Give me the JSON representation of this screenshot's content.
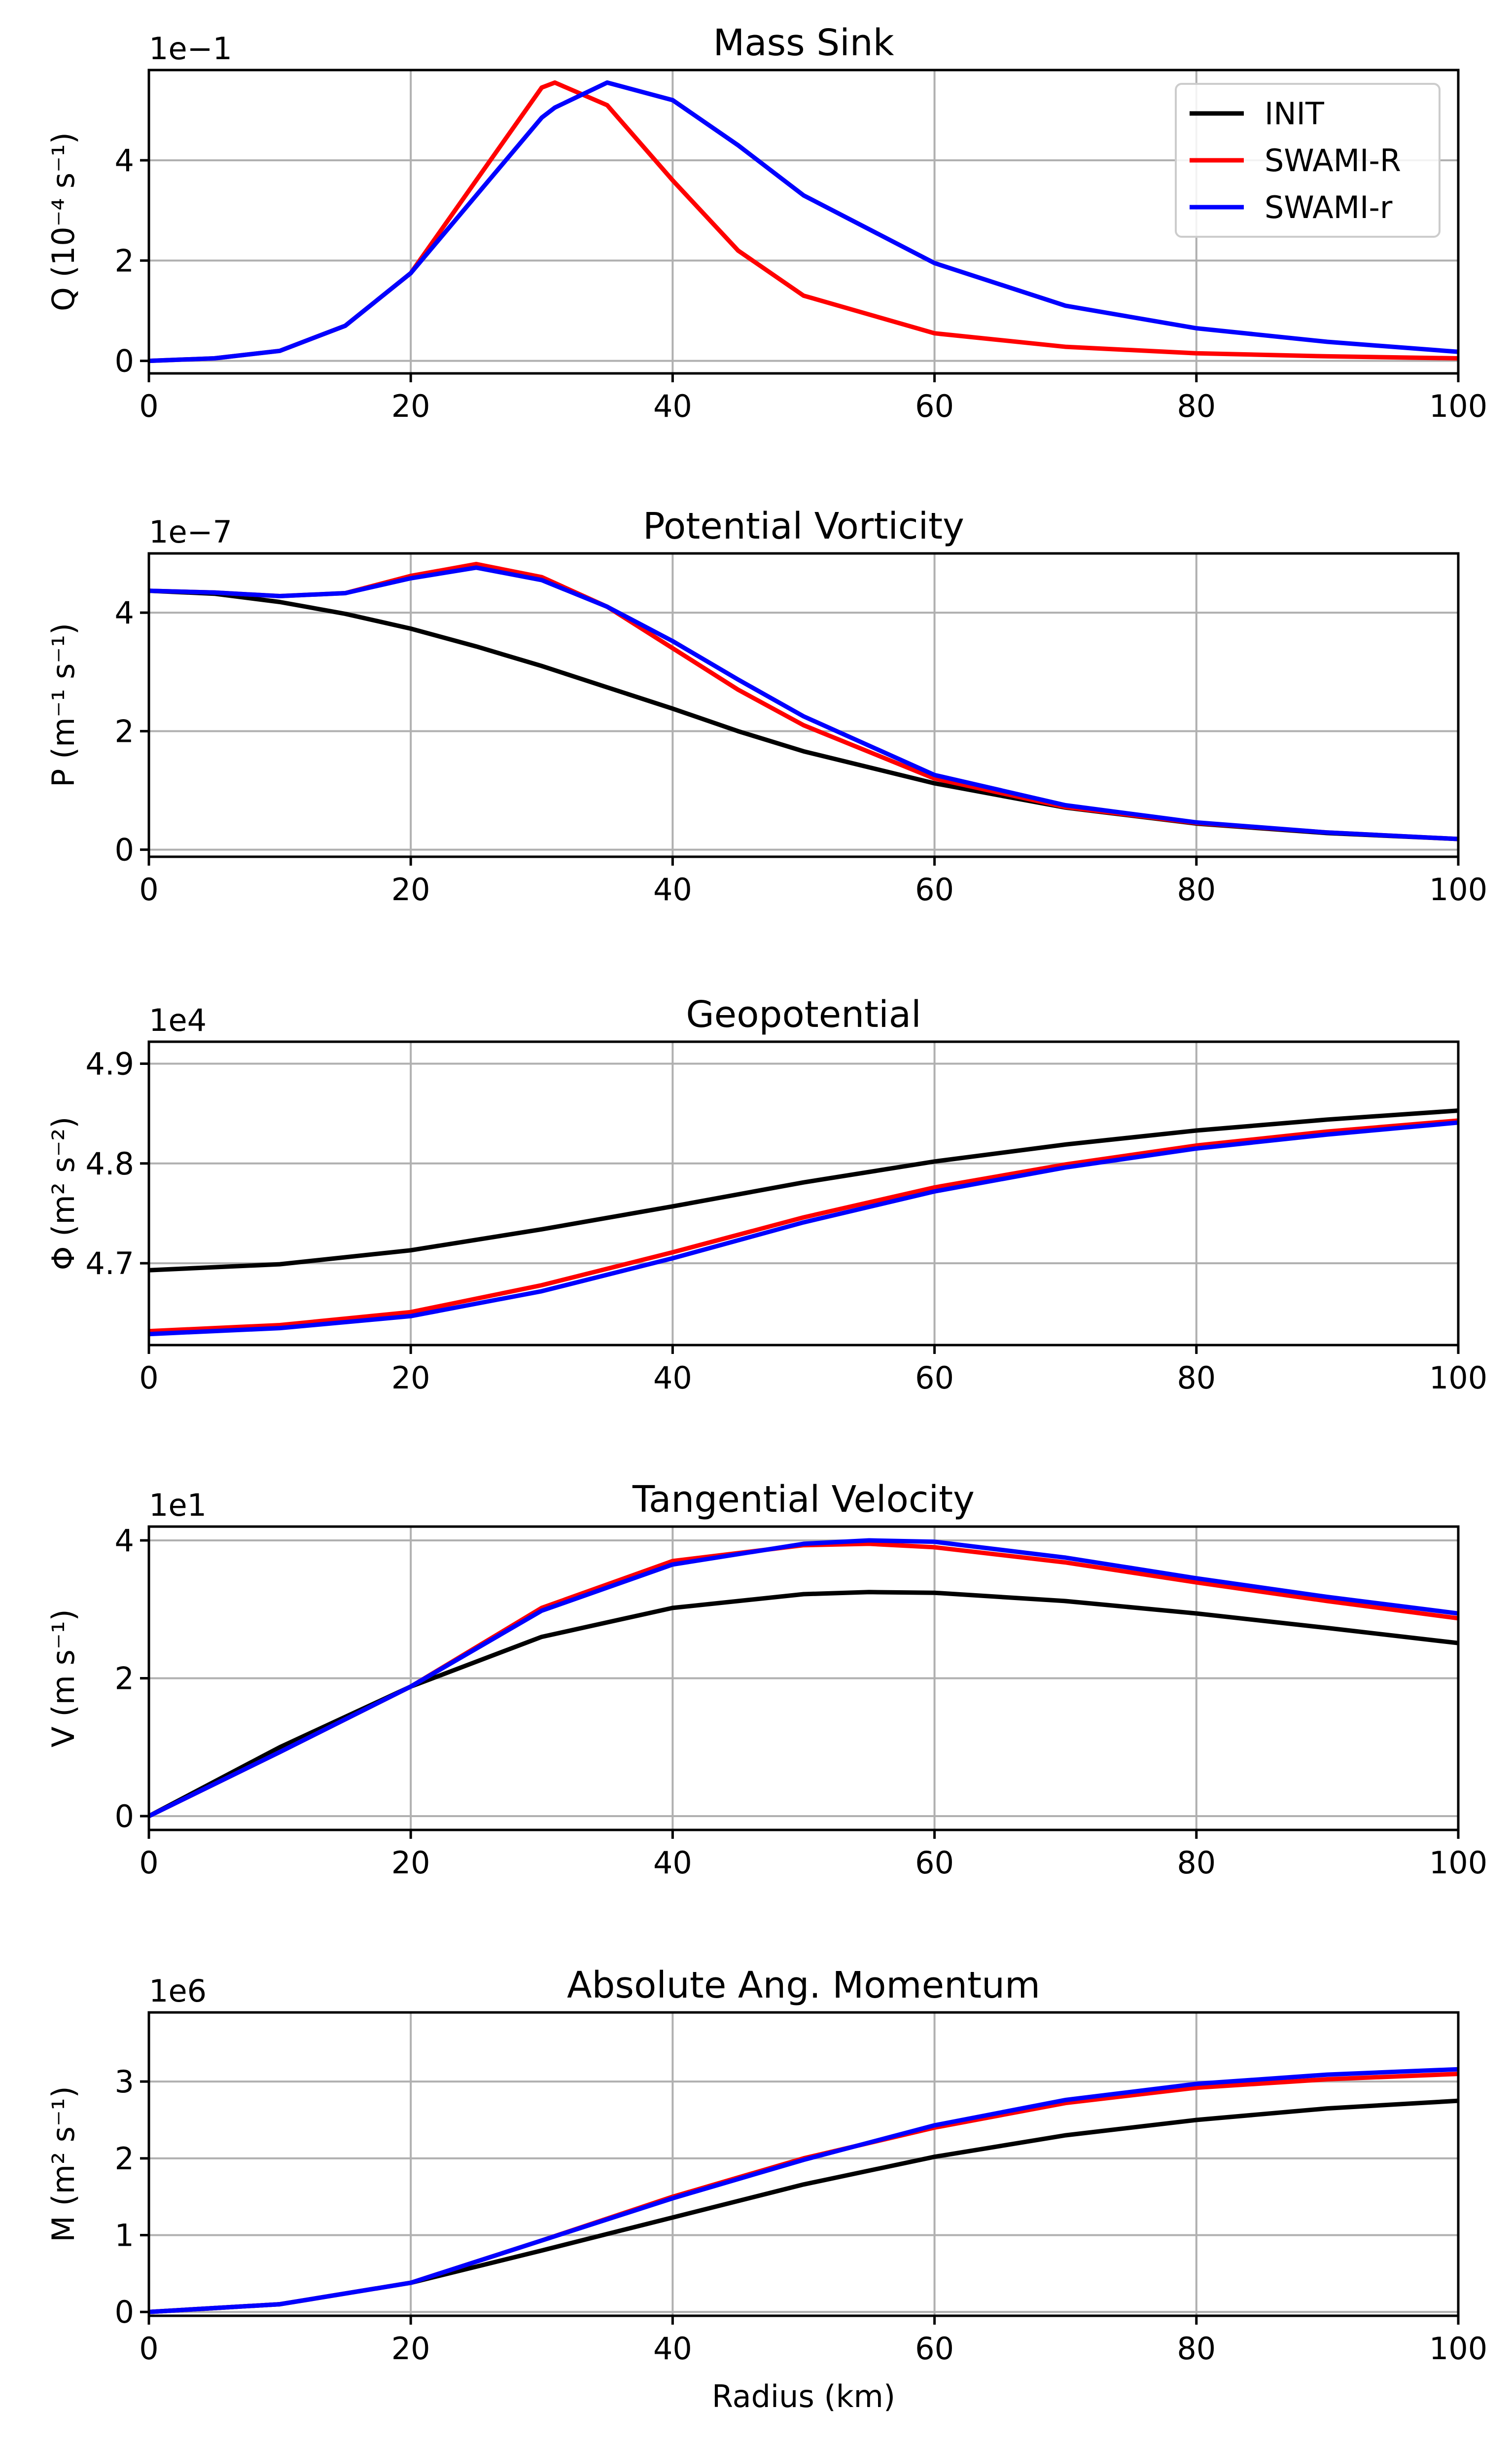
{
  "figure": {
    "legend": [
      {
        "label": "INIT",
        "color": "#000000"
      },
      {
        "label": "SWAMI-R",
        "color": "#ff0000"
      },
      {
        "label": "SWAMI-r",
        "color": "#0000ff"
      }
    ]
  },
  "chart_data": [
    {
      "type": "line",
      "title": "Mass Sink",
      "ylabel": "Q (10⁻⁴ s⁻¹)",
      "xlabel": "",
      "offset_label": "1e−1",
      "xlim": [
        0,
        100
      ],
      "ylim": [
        -0.25,
        5.8
      ],
      "xticks": [
        0,
        20,
        40,
        60,
        80,
        100
      ],
      "xtick_labels": [
        "0",
        "20",
        "40",
        "60",
        "80",
        "100"
      ],
      "yticks": [
        0,
        2,
        4
      ],
      "ytick_labels": [
        "0",
        "2",
        "4"
      ],
      "grid": true,
      "legend_position": "top-right",
      "x": [
        0,
        5,
        10,
        15,
        20,
        25,
        30,
        31,
        35,
        40,
        45,
        50,
        60,
        70,
        80,
        90,
        100
      ],
      "series": [
        {
          "name": "SWAMI-R",
          "color": "#ff0000",
          "values": [
            0.0,
            0.05,
            0.2,
            0.7,
            1.75,
            3.6,
            5.45,
            5.55,
            5.1,
            3.6,
            2.2,
            1.3,
            0.55,
            0.28,
            0.15,
            0.09,
            0.05
          ]
        },
        {
          "name": "SWAMI-r",
          "color": "#0000ff",
          "values": [
            0.0,
            0.05,
            0.2,
            0.7,
            1.75,
            3.3,
            4.85,
            5.05,
            5.55,
            5.2,
            4.3,
            3.3,
            1.95,
            1.1,
            0.65,
            0.38,
            0.18
          ]
        }
      ]
    },
    {
      "type": "line",
      "title": "Potential Vorticity",
      "ylabel": "P (m⁻¹ s⁻¹)",
      "xlabel": "",
      "offset_label": "1e−7",
      "xlim": [
        0,
        100
      ],
      "ylim": [
        -0.12,
        5.0
      ],
      "xticks": [
        0,
        20,
        40,
        60,
        80,
        100
      ],
      "xtick_labels": [
        "0",
        "20",
        "40",
        "60",
        "80",
        "100"
      ],
      "yticks": [
        0,
        2,
        4
      ],
      "ytick_labels": [
        "0",
        "2",
        "4"
      ],
      "grid": true,
      "x": [
        0,
        5,
        10,
        15,
        20,
        25,
        30,
        35,
        40,
        45,
        50,
        60,
        70,
        80,
        90,
        100
      ],
      "series": [
        {
          "name": "INIT",
          "color": "#000000",
          "values": [
            4.37,
            4.32,
            4.18,
            3.98,
            3.73,
            3.43,
            3.1,
            2.74,
            2.38,
            2.0,
            1.66,
            1.12,
            0.71,
            0.44,
            0.28,
            0.18
          ]
        },
        {
          "name": "SWAMI-R",
          "color": "#ff0000",
          "values": [
            4.37,
            4.34,
            4.28,
            4.33,
            4.62,
            4.82,
            4.6,
            4.1,
            3.4,
            2.7,
            2.1,
            1.2,
            0.72,
            0.45,
            0.29,
            0.18
          ]
        },
        {
          "name": "SWAMI-r",
          "color": "#0000ff",
          "values": [
            4.37,
            4.34,
            4.28,
            4.33,
            4.58,
            4.76,
            4.55,
            4.1,
            3.52,
            2.87,
            2.25,
            1.26,
            0.75,
            0.46,
            0.29,
            0.18
          ]
        }
      ]
    },
    {
      "type": "line",
      "title": "Geopotential",
      "ylabel": "Φ (m² s⁻²)",
      "xlabel": "",
      "offset_label": "1e4",
      "xlim": [
        0,
        100
      ],
      "ylim": [
        4.618,
        4.922
      ],
      "xticks": [
        0,
        20,
        40,
        60,
        80,
        100
      ],
      "xtick_labels": [
        "0",
        "20",
        "40",
        "60",
        "80",
        "100"
      ],
      "yticks": [
        4.7,
        4.8,
        4.9
      ],
      "ytick_labels": [
        "4.7",
        "4.8",
        "4.9"
      ],
      "grid": true,
      "x": [
        0,
        10,
        20,
        30,
        40,
        50,
        60,
        70,
        80,
        90,
        100
      ],
      "series": [
        {
          "name": "INIT",
          "color": "#000000",
          "values": [
            4.693,
            4.699,
            4.713,
            4.734,
            4.757,
            4.781,
            4.802,
            4.819,
            4.833,
            4.844,
            4.853
          ]
        },
        {
          "name": "SWAMI-R",
          "color": "#ff0000",
          "values": [
            4.632,
            4.638,
            4.651,
            4.678,
            4.711,
            4.746,
            4.776,
            4.799,
            4.818,
            4.832,
            4.843
          ]
        },
        {
          "name": "SWAMI-r",
          "color": "#0000ff",
          "values": [
            4.629,
            4.635,
            4.647,
            4.672,
            4.705,
            4.741,
            4.772,
            4.796,
            4.815,
            4.829,
            4.841
          ]
        }
      ]
    },
    {
      "type": "line",
      "title": "Tangential Velocity",
      "ylabel": "V (m s⁻¹)",
      "xlabel": "",
      "offset_label": "1e1",
      "xlim": [
        0,
        100
      ],
      "ylim": [
        -0.2,
        4.2
      ],
      "xticks": [
        0,
        20,
        40,
        60,
        80,
        100
      ],
      "xtick_labels": [
        "0",
        "20",
        "40",
        "60",
        "80",
        "100"
      ],
      "yticks": [
        0,
        2,
        4
      ],
      "ytick_labels": [
        "0",
        "2",
        "4"
      ],
      "grid": true,
      "x": [
        0,
        10,
        20,
        30,
        40,
        50,
        55,
        60,
        70,
        80,
        90,
        100
      ],
      "series": [
        {
          "name": "INIT",
          "color": "#000000",
          "values": [
            0.0,
            1.0,
            1.88,
            2.6,
            3.02,
            3.22,
            3.25,
            3.24,
            3.12,
            2.94,
            2.73,
            2.51
          ]
        },
        {
          "name": "SWAMI-R",
          "color": "#ff0000",
          "values": [
            0.0,
            0.93,
            1.88,
            3.02,
            3.7,
            3.93,
            3.95,
            3.9,
            3.68,
            3.39,
            3.12,
            2.87
          ]
        },
        {
          "name": "SWAMI-r",
          "color": "#0000ff",
          "values": [
            0.0,
            0.93,
            1.88,
            2.98,
            3.65,
            3.95,
            4.0,
            3.98,
            3.75,
            3.45,
            3.18,
            2.94
          ]
        }
      ]
    },
    {
      "type": "line",
      "title": "Absolute Ang. Momentum",
      "ylabel": "M (m² s⁻¹)",
      "xlabel": "Radius (km)",
      "offset_label": "1e6",
      "xlim": [
        0,
        100
      ],
      "ylim": [
        -0.05,
        3.9
      ],
      "xticks": [
        0,
        20,
        40,
        60,
        80,
        100
      ],
      "xtick_labels": [
        "0",
        "20",
        "40",
        "60",
        "80",
        "100"
      ],
      "yticks": [
        0,
        1,
        2,
        3
      ],
      "ytick_labels": [
        "0",
        "1",
        "2",
        "3"
      ],
      "grid": true,
      "x": [
        0,
        10,
        20,
        30,
        40,
        50,
        60,
        70,
        80,
        90,
        100
      ],
      "series": [
        {
          "name": "INIT",
          "color": "#000000",
          "values": [
            0.0,
            0.1,
            0.38,
            0.8,
            1.23,
            1.66,
            2.02,
            2.3,
            2.5,
            2.65,
            2.75
          ]
        },
        {
          "name": "SWAMI-R",
          "color": "#ff0000",
          "values": [
            0.0,
            0.1,
            0.38,
            0.93,
            1.5,
            2.0,
            2.4,
            2.72,
            2.92,
            3.03,
            3.1
          ]
        },
        {
          "name": "SWAMI-r",
          "color": "#0000ff",
          "values": [
            0.0,
            0.1,
            0.38,
            0.93,
            1.48,
            1.98,
            2.43,
            2.76,
            2.97,
            3.09,
            3.16
          ]
        }
      ]
    }
  ]
}
